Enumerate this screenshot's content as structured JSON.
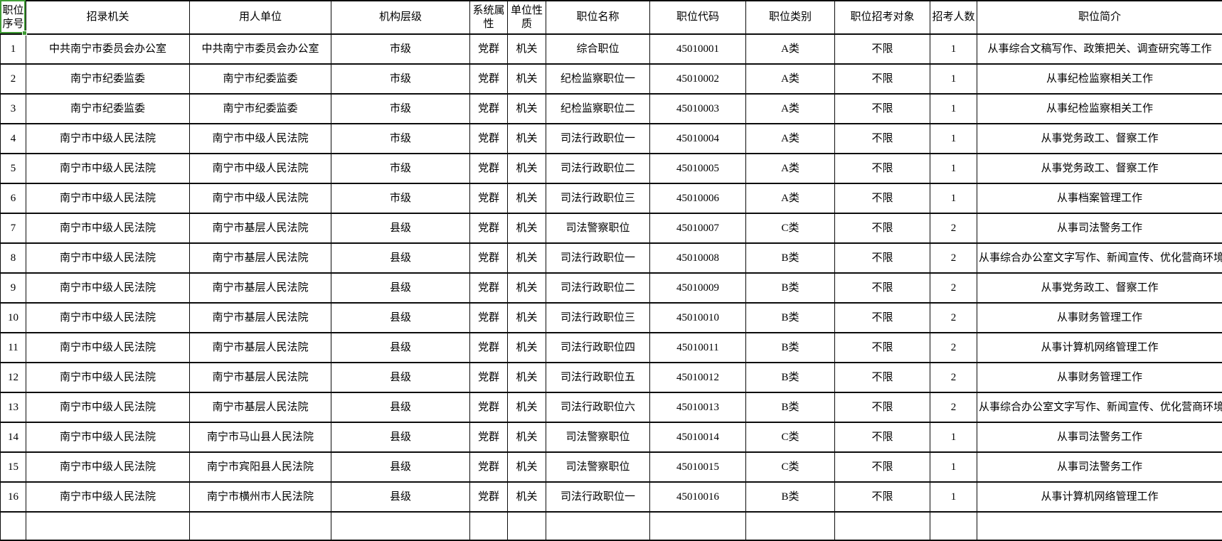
{
  "accent_colors": {
    "selection_green": "#3f9b35",
    "grid_line": "#0c0c0c",
    "background": "#ffffff"
  },
  "table": {
    "columns": [
      {
        "key": "seq",
        "label": "职位序号"
      },
      {
        "key": "agency",
        "label": "招录机关"
      },
      {
        "key": "employer",
        "label": "用人单位"
      },
      {
        "key": "level",
        "label": "机构层级"
      },
      {
        "key": "system",
        "label": "系统属性"
      },
      {
        "key": "nature",
        "label": "单位性质"
      },
      {
        "key": "name",
        "label": "职位名称"
      },
      {
        "key": "code",
        "label": "职位代码"
      },
      {
        "key": "category",
        "label": "职位类别"
      },
      {
        "key": "target",
        "label": "职位招考对象"
      },
      {
        "key": "count",
        "label": "招考人数"
      },
      {
        "key": "intro",
        "label": "职位简介"
      }
    ],
    "rows": [
      {
        "seq": "1",
        "agency": "中共南宁市委员会办公室",
        "employer": "中共南宁市委员会办公室",
        "level": "市级",
        "system": "党群",
        "nature": "机关",
        "name": "综合职位",
        "code": "45010001",
        "category": "A类",
        "target": "不限",
        "count": "1",
        "intro": "从事综合文稿写作、政策把关、调查研究等工作"
      },
      {
        "seq": "2",
        "agency": "南宁市纪委监委",
        "employer": "南宁市纪委监委",
        "level": "市级",
        "system": "党群",
        "nature": "机关",
        "name": "纪检监察职位一",
        "code": "45010002",
        "category": "A类",
        "target": "不限",
        "count": "1",
        "intro": "从事纪检监察相关工作"
      },
      {
        "seq": "3",
        "agency": "南宁市纪委监委",
        "employer": "南宁市纪委监委",
        "level": "市级",
        "system": "党群",
        "nature": "机关",
        "name": "纪检监察职位二",
        "code": "45010003",
        "category": "A类",
        "target": "不限",
        "count": "1",
        "intro": "从事纪检监察相关工作"
      },
      {
        "seq": "4",
        "agency": "南宁市中级人民法院",
        "employer": "南宁市中级人民法院",
        "level": "市级",
        "system": "党群",
        "nature": "机关",
        "name": "司法行政职位一",
        "code": "45010004",
        "category": "A类",
        "target": "不限",
        "count": "1",
        "intro": "从事党务政工、督察工作"
      },
      {
        "seq": "5",
        "agency": "南宁市中级人民法院",
        "employer": "南宁市中级人民法院",
        "level": "市级",
        "system": "党群",
        "nature": "机关",
        "name": "司法行政职位二",
        "code": "45010005",
        "category": "A类",
        "target": "不限",
        "count": "1",
        "intro": "从事党务政工、督察工作"
      },
      {
        "seq": "6",
        "agency": "南宁市中级人民法院",
        "employer": "南宁市中级人民法院",
        "level": "市级",
        "system": "党群",
        "nature": "机关",
        "name": "司法行政职位三",
        "code": "45010006",
        "category": "A类",
        "target": "不限",
        "count": "1",
        "intro": "从事档案管理工作"
      },
      {
        "seq": "7",
        "agency": "南宁市中级人民法院",
        "employer": "南宁市基层人民法院",
        "level": "县级",
        "system": "党群",
        "nature": "机关",
        "name": "司法警察职位",
        "code": "45010007",
        "category": "C类",
        "target": "不限",
        "count": "2",
        "intro": "从事司法警务工作"
      },
      {
        "seq": "8",
        "agency": "南宁市中级人民法院",
        "employer": "南宁市基层人民法院",
        "level": "县级",
        "system": "党群",
        "nature": "机关",
        "name": "司法行政职位一",
        "code": "45010008",
        "category": "B类",
        "target": "不限",
        "count": "2",
        "intro": "从事综合办公室文字写作、新闻宣传、优化营商环境"
      },
      {
        "seq": "9",
        "agency": "南宁市中级人民法院",
        "employer": "南宁市基层人民法院",
        "level": "县级",
        "system": "党群",
        "nature": "机关",
        "name": "司法行政职位二",
        "code": "45010009",
        "category": "B类",
        "target": "不限",
        "count": "2",
        "intro": "从事党务政工、督察工作"
      },
      {
        "seq": "10",
        "agency": "南宁市中级人民法院",
        "employer": "南宁市基层人民法院",
        "level": "县级",
        "system": "党群",
        "nature": "机关",
        "name": "司法行政职位三",
        "code": "45010010",
        "category": "B类",
        "target": "不限",
        "count": "2",
        "intro": "从事财务管理工作"
      },
      {
        "seq": "11",
        "agency": "南宁市中级人民法院",
        "employer": "南宁市基层人民法院",
        "level": "县级",
        "system": "党群",
        "nature": "机关",
        "name": "司法行政职位四",
        "code": "45010011",
        "category": "B类",
        "target": "不限",
        "count": "2",
        "intro": "从事计算机网络管理工作"
      },
      {
        "seq": "12",
        "agency": "南宁市中级人民法院",
        "employer": "南宁市基层人民法院",
        "level": "县级",
        "system": "党群",
        "nature": "机关",
        "name": "司法行政职位五",
        "code": "45010012",
        "category": "B类",
        "target": "不限",
        "count": "2",
        "intro": "从事财务管理工作"
      },
      {
        "seq": "13",
        "agency": "南宁市中级人民法院",
        "employer": "南宁市基层人民法院",
        "level": "县级",
        "system": "党群",
        "nature": "机关",
        "name": "司法行政职位六",
        "code": "45010013",
        "category": "B类",
        "target": "不限",
        "count": "2",
        "intro": "从事综合办公室文字写作、新闻宣传、优化营商环境"
      },
      {
        "seq": "14",
        "agency": "南宁市中级人民法院",
        "employer": "南宁市马山县人民法院",
        "level": "县级",
        "system": "党群",
        "nature": "机关",
        "name": "司法警察职位",
        "code": "45010014",
        "category": "C类",
        "target": "不限",
        "count": "1",
        "intro": "从事司法警务工作"
      },
      {
        "seq": "15",
        "agency": "南宁市中级人民法院",
        "employer": "南宁市宾阳县人民法院",
        "level": "县级",
        "system": "党群",
        "nature": "机关",
        "name": "司法警察职位",
        "code": "45010015",
        "category": "C类",
        "target": "不限",
        "count": "1",
        "intro": "从事司法警务工作"
      },
      {
        "seq": "16",
        "agency": "南宁市中级人民法院",
        "employer": "南宁市横州市人民法院",
        "level": "县级",
        "system": "党群",
        "nature": "机关",
        "name": "司法行政职位一",
        "code": "45010016",
        "category": "B类",
        "target": "不限",
        "count": "1",
        "intro": "从事计算机网络管理工作"
      }
    ]
  },
  "selection": {
    "active_cell_label": "职位序号"
  }
}
